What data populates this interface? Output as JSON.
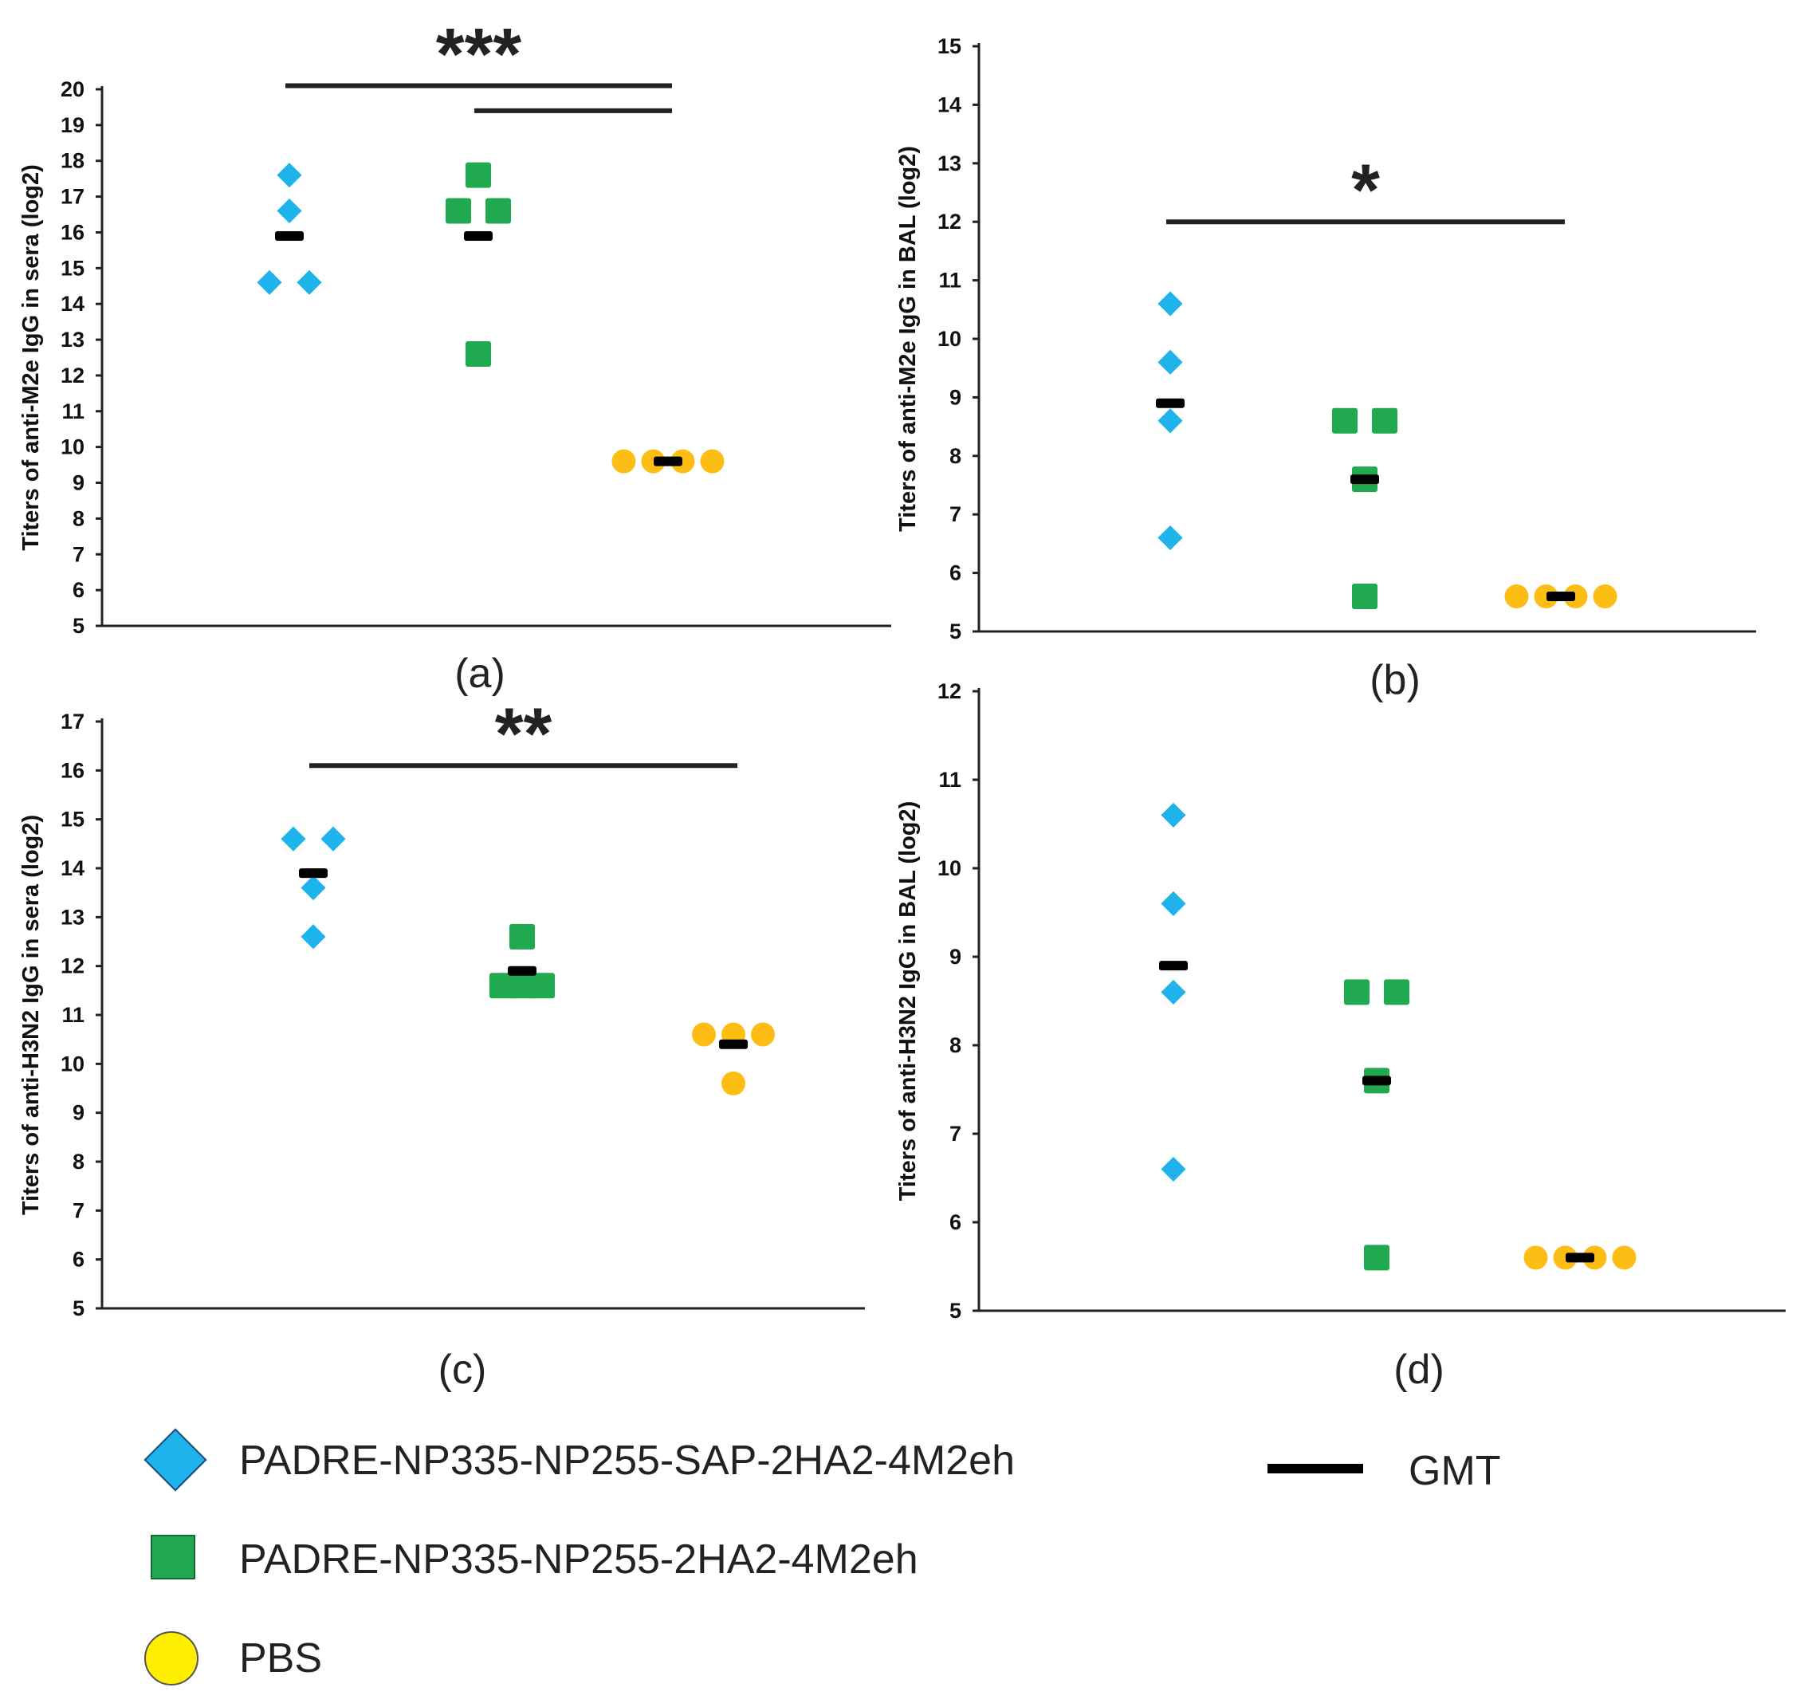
{
  "colors": {
    "series1": "#1fb3ec",
    "series2": "#20a94f",
    "series3": "#fcbd14",
    "legend_circle": "#ffee00",
    "gmt": "#000000",
    "axis": "#222222"
  },
  "legend": {
    "series1_label": "PADRE-NP335-NP255-SAP-2HA2-4M2eh",
    "series2_label": "PADRE-NP335-NP255-2HA2-4M2eh",
    "series3_label": "PBS",
    "gmt_label": "GMT"
  },
  "chart_data": [
    {
      "id": "a",
      "type": "scatter",
      "caption": "(a)",
      "ylabel": "Titers of anti-M2e IgG in sera (log2)",
      "ylim": [
        5,
        20
      ],
      "yticks": [
        5,
        6,
        7,
        8,
        9,
        10,
        11,
        12,
        13,
        14,
        15,
        16,
        17,
        18,
        19,
        20
      ],
      "groups": [
        {
          "series": "series1",
          "values": [
            17.6,
            16.6,
            14.6,
            14.6
          ],
          "gmt": 15.9
        },
        {
          "series": "series2",
          "values": [
            17.6,
            16.6,
            16.6,
            12.6
          ],
          "gmt": 15.9
        },
        {
          "series": "series3",
          "values": [
            9.6,
            9.6,
            9.6,
            9.6
          ],
          "gmt": 9.6
        }
      ],
      "significance": [
        {
          "label": "***",
          "from_group": 1,
          "to_group": 3,
          "y": 20.1
        },
        {
          "label": "",
          "from_group": 2,
          "to_group": 3,
          "y": 19.4
        }
      ]
    },
    {
      "id": "b",
      "type": "scatter",
      "caption": "(b)",
      "ylabel": "Titers of anti-M2e IgG in BAL (log2)",
      "ylim": [
        5,
        15
      ],
      "yticks": [
        5,
        6,
        7,
        8,
        9,
        10,
        11,
        12,
        13,
        14,
        15
      ],
      "groups": [
        {
          "series": "series1",
          "values": [
            10.6,
            9.6,
            8.6,
            6.6
          ],
          "gmt": 8.9
        },
        {
          "series": "series2",
          "values": [
            8.6,
            8.6,
            7.6,
            5.6
          ],
          "gmt": 7.6
        },
        {
          "series": "series3",
          "values": [
            5.6,
            5.6,
            5.6,
            5.6
          ],
          "gmt": 5.6
        }
      ],
      "significance": [
        {
          "label": "*",
          "from_group": 1,
          "to_group": 3,
          "y": 12.0
        }
      ]
    },
    {
      "id": "c",
      "type": "scatter",
      "caption": "(c)",
      "ylabel": "Titers of anti-H3N2 IgG in sera (log2)",
      "ylim": [
        5,
        17
      ],
      "yticks": [
        5,
        6,
        7,
        8,
        9,
        10,
        11,
        12,
        13,
        14,
        15,
        16,
        17
      ],
      "groups": [
        {
          "series": "series1",
          "values": [
            14.6,
            14.6,
            13.6,
            12.6
          ],
          "gmt": 13.9
        },
        {
          "series": "series2",
          "values": [
            12.6,
            11.6,
            11.6,
            11.6
          ],
          "gmt": 11.9
        },
        {
          "series": "series3",
          "values": [
            10.6,
            10.6,
            10.6,
            9.6
          ],
          "gmt": 10.4
        }
      ],
      "significance": [
        {
          "label": "**",
          "from_group": 1,
          "to_group": 3,
          "y": 16.1
        }
      ]
    },
    {
      "id": "d",
      "type": "scatter",
      "caption": "(d)",
      "ylabel": "Titers of anti-H3N2 IgG in BAL (log2)",
      "ylim": [
        5,
        12
      ],
      "yticks": [
        5,
        6,
        7,
        8,
        9,
        10,
        11,
        12
      ],
      "groups": [
        {
          "series": "series1",
          "values": [
            10.6,
            9.6,
            8.6,
            6.6
          ],
          "gmt": 8.9
        },
        {
          "series": "series2",
          "values": [
            8.6,
            8.6,
            7.6,
            5.6
          ],
          "gmt": 7.6
        },
        {
          "series": "series3",
          "values": [
            5.6,
            5.6,
            5.6,
            5.6
          ],
          "gmt": 5.6
        }
      ],
      "significance": []
    }
  ]
}
